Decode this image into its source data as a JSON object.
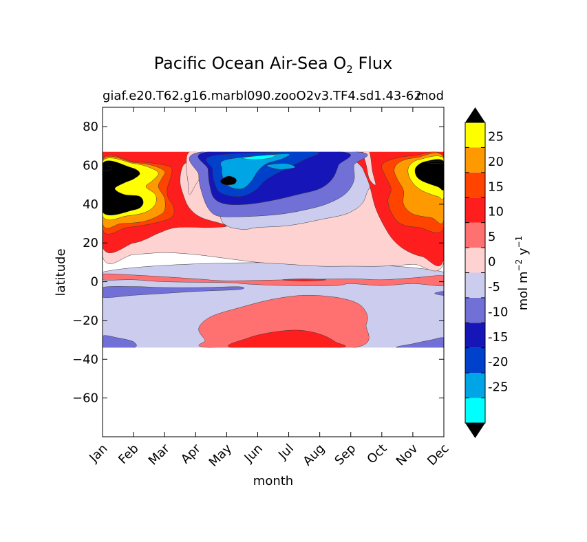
{
  "chart_data": {
    "type": "heatmap",
    "title": "Pacific Ocean Air-Sea O",
    "title_subscript": "2",
    "title_suffix": " Flux",
    "subtitle_left": "giaf.e20.T62.g16.marbl090.zooO2v3.TF4.sd1.43-62",
    "subtitle_right": "mod",
    "xlabel": "month",
    "ylabel": "latitude",
    "x_categories": [
      "Jan",
      "Feb",
      "Mar",
      "Apr",
      "May",
      "Jun",
      "Jul",
      "Aug",
      "Sep",
      "Oct",
      "Nov",
      "Dec"
    ],
    "xlim": [
      0,
      11
    ],
    "ylim": [
      -80,
      90
    ],
    "yticks": [
      -60,
      -40,
      -20,
      0,
      20,
      40,
      60,
      80
    ],
    "data_lat_range": [
      -34,
      67
    ],
    "colorbar": {
      "label": "mol m",
      "label_exp1": "−2",
      "label_mid": "  y",
      "label_exp2": "−1",
      "levels": [
        -30,
        -25,
        -20,
        -15,
        -10,
        -5,
        0,
        5,
        10,
        15,
        20,
        25,
        30
      ],
      "tick_labels": [
        "-25",
        "-20",
        "-15",
        "-10",
        "-5",
        "0",
        "5",
        "10",
        "15",
        "20",
        "25"
      ],
      "colors": [
        "#00ffff",
        "#00a5e6",
        "#0041cc",
        "#1616b8",
        "#7070d6",
        "#ccccee",
        "#ffd2d2",
        "#ff7070",
        "#ff1e1e",
        "#ff4400",
        "#ff9900",
        "#ffff00"
      ],
      "under_color": "#000000",
      "over_color": "#000000"
    },
    "regions": [
      {
        "level": -5,
        "points": [
          [
            0,
            5
          ],
          [
            11,
            5
          ],
          [
            11,
            -34
          ],
          [
            0,
            -34
          ]
        ]
      },
      {
        "level": 5,
        "points": [
          [
            0,
            4
          ],
          [
            1.5,
            3
          ],
          [
            3,
            1.5
          ],
          [
            4,
            0.5
          ],
          [
            6,
            1
          ],
          [
            8,
            1.5
          ],
          [
            9,
            1
          ],
          [
            10,
            2
          ],
          [
            11,
            3
          ],
          [
            11,
            -2
          ],
          [
            10,
            -1
          ],
          [
            9,
            -2
          ],
          [
            8,
            -1
          ],
          [
            7.5,
            -2
          ],
          [
            6,
            -2
          ],
          [
            5,
            -1.5
          ],
          [
            4.5,
            -1
          ],
          [
            4,
            -0.5
          ],
          [
            2,
            0
          ],
          [
            1,
            1
          ],
          [
            0,
            1
          ]
        ]
      },
      {
        "level": 5,
        "points": [
          [
            3.5,
            -34
          ],
          [
            3.3,
            -30
          ],
          [
            3.1,
            -24
          ],
          [
            3.5,
            -18
          ],
          [
            4.5,
            -13
          ],
          [
            5.5,
            -9
          ],
          [
            6.5,
            -7
          ],
          [
            7.5,
            -8
          ],
          [
            8.2,
            -11
          ],
          [
            8.5,
            -16
          ],
          [
            8.5,
            -22
          ],
          [
            8.1,
            -34
          ]
        ]
      },
      {
        "level": 10,
        "points": [
          [
            4.2,
            -34
          ],
          [
            4.7,
            -29
          ],
          [
            5.5,
            -26
          ],
          [
            6.3,
            -25
          ],
          [
            7,
            -27
          ],
          [
            7.5,
            -31
          ],
          [
            7.6,
            -34
          ]
        ]
      },
      {
        "level": 10,
        "points": [
          [
            5.8,
            1
          ],
          [
            6.5,
            1.5
          ],
          [
            7.2,
            1
          ],
          [
            6.5,
            0.3
          ]
        ]
      },
      {
        "level": -10,
        "points": [
          [
            0,
            -3
          ],
          [
            1,
            -2.5
          ],
          [
            2,
            -3
          ],
          [
            3.2,
            -3
          ],
          [
            4.4,
            -2.6
          ],
          [
            4.4,
            -4
          ],
          [
            3,
            -5
          ],
          [
            2,
            -6
          ],
          [
            1,
            -7
          ],
          [
            0,
            -8
          ]
        ]
      },
      {
        "level": -10,
        "points": [
          [
            0,
            -28
          ],
          [
            0.5,
            -29
          ],
          [
            1,
            -31
          ],
          [
            1,
            -34
          ],
          [
            0,
            -34
          ]
        ]
      },
      {
        "level": -10,
        "points": [
          [
            9.5,
            -34
          ],
          [
            10,
            -32
          ],
          [
            10.6,
            -30
          ],
          [
            11,
            -29
          ],
          [
            11,
            -34
          ]
        ]
      },
      {
        "level": -10,
        "points": [
          [
            10.7,
            -6
          ],
          [
            11,
            -5
          ],
          [
            11,
            -7
          ]
        ]
      },
      {
        "level": 0,
        "points": [
          [
            0,
            67
          ],
          [
            11,
            67
          ],
          [
            11,
            10
          ],
          [
            10,
            9
          ],
          [
            9,
            8
          ],
          [
            8,
            8
          ],
          [
            7,
            8
          ],
          [
            6,
            9
          ],
          [
            5,
            10
          ],
          [
            4,
            12
          ],
          [
            3,
            14
          ],
          [
            2,
            15
          ],
          [
            1,
            14
          ],
          [
            0,
            13
          ]
        ]
      },
      {
        "level": -5,
        "points": [
          [
            3.2,
            67
          ],
          [
            8.5,
            67
          ],
          [
            8.5,
            45
          ],
          [
            8,
            36
          ],
          [
            7,
            32
          ],
          [
            6,
            29
          ],
          [
            5,
            28
          ],
          [
            4.5,
            27
          ],
          [
            3.9,
            30
          ],
          [
            3.7,
            40
          ],
          [
            3.3,
            55
          ]
        ]
      },
      {
        "level": 10,
        "points": [
          [
            0,
            67
          ],
          [
            3,
            67
          ],
          [
            2.6,
            60
          ],
          [
            2.5,
            52
          ],
          [
            2.6,
            45
          ],
          [
            2.8,
            38
          ],
          [
            3.2,
            33
          ],
          [
            4,
            29
          ],
          [
            3.5,
            28
          ],
          [
            2.4,
            28
          ],
          [
            1.8,
            25
          ],
          [
            1.4,
            22
          ],
          [
            1,
            20
          ],
          [
            0,
            18
          ]
        ]
      },
      {
        "level": 10,
        "points": [
          [
            8.2,
            67
          ],
          [
            11,
            67
          ],
          [
            11,
            12
          ],
          [
            10.3,
            13
          ],
          [
            9.8,
            16
          ],
          [
            9.4,
            21
          ],
          [
            9.1,
            28
          ],
          [
            8.8,
            38
          ],
          [
            8.6,
            50
          ],
          [
            8.4,
            58
          ]
        ]
      },
      {
        "level": 0,
        "points": [
          [
            2.8,
            67
          ],
          [
            3.4,
            67
          ],
          [
            3.3,
            58
          ],
          [
            3,
            50
          ],
          [
            2.8,
            45
          ],
          [
            2.75,
            52
          ],
          [
            2.7,
            60
          ]
        ]
      },
      {
        "level": 0,
        "points": [
          [
            8.4,
            67
          ],
          [
            8.6,
            67
          ],
          [
            8.7,
            57
          ],
          [
            8.8,
            50
          ],
          [
            8.6,
            53
          ],
          [
            8.5,
            60
          ]
        ]
      },
      {
        "level": -10,
        "points": [
          [
            3.2,
            67
          ],
          [
            8.2,
            67
          ],
          [
            8.1,
            60
          ],
          [
            8.1,
            52
          ],
          [
            7.8,
            45
          ],
          [
            7.2,
            40
          ],
          [
            6.5,
            37
          ],
          [
            5.8,
            35
          ],
          [
            5.1,
            34
          ],
          [
            4.3,
            33.5
          ],
          [
            3.7,
            34
          ],
          [
            3.4,
            38
          ],
          [
            3.2,
            46
          ],
          [
            3.1,
            55
          ]
        ]
      },
      {
        "level": -15,
        "points": [
          [
            3.4,
            67
          ],
          [
            7.7,
            67
          ],
          [
            7.6,
            60
          ],
          [
            7.4,
            53
          ],
          [
            7,
            48
          ],
          [
            6.3,
            45
          ],
          [
            5.5,
            42
          ],
          [
            4.7,
            40
          ],
          [
            4,
            40
          ],
          [
            3.6,
            43
          ],
          [
            3.45,
            50
          ],
          [
            3.4,
            58
          ]
        ]
      },
      {
        "level": -20,
        "points": [
          [
            3.6,
            65
          ],
          [
            6.8,
            67
          ],
          [
            6.5,
            63
          ],
          [
            6,
            59
          ],
          [
            5.3,
            53
          ],
          [
            4.9,
            47
          ],
          [
            4.4,
            44
          ],
          [
            3.8,
            46
          ],
          [
            3.6,
            52
          ],
          [
            3.55,
            58
          ]
        ]
      },
      {
        "level": -25,
        "points": [
          [
            4,
            63
          ],
          [
            5.9,
            66
          ],
          [
            5.8,
            63.5
          ],
          [
            5.3,
            61
          ],
          [
            5,
            57
          ],
          [
            4.8,
            52
          ],
          [
            4.5,
            48
          ],
          [
            4.1,
            49
          ],
          [
            3.9,
            53
          ],
          [
            3.85,
            58
          ]
        ]
      },
      {
        "level": -30,
        "points": [
          [
            4.5,
            64
          ],
          [
            5.5,
            65.5
          ],
          [
            5.4,
            63.8
          ],
          [
            4.9,
            63
          ]
        ]
      },
      {
        "level": -25,
        "points": [
          [
            5.3,
            60
          ],
          [
            5.9,
            61
          ],
          [
            6.2,
            59
          ],
          [
            5.7,
            58
          ]
        ]
      },
      {
        "level": -35,
        "points": [
          [
            3.8,
            52
          ],
          [
            4.05,
            54.5
          ],
          [
            4.3,
            53
          ],
          [
            4.25,
            50.5
          ],
          [
            3.95,
            50
          ]
        ]
      },
      {
        "level": 15,
        "points": [
          [
            0,
            63
          ],
          [
            1,
            62
          ],
          [
            1.7,
            61
          ],
          [
            2.2,
            59
          ],
          [
            2.2,
            54
          ],
          [
            2.1,
            49
          ],
          [
            2.1,
            44
          ],
          [
            2.3,
            38
          ],
          [
            2.2,
            33
          ],
          [
            1.6,
            30
          ],
          [
            0.8,
            28
          ],
          [
            0,
            27
          ]
        ]
      },
      {
        "level": 20,
        "points": [
          [
            0,
            62.5
          ],
          [
            1,
            61.5
          ],
          [
            1.6,
            60
          ],
          [
            2,
            57
          ],
          [
            1.9,
            53
          ],
          [
            1.8,
            49
          ],
          [
            2,
            43
          ],
          [
            2,
            37
          ],
          [
            1.8,
            34
          ],
          [
            1.3,
            31
          ],
          [
            0.6,
            30
          ],
          [
            0,
            30
          ]
        ]
      },
      {
        "level": 25,
        "points": [
          [
            0,
            62
          ],
          [
            1,
            61
          ],
          [
            1.5,
            59
          ],
          [
            1.8,
            56
          ],
          [
            1.6,
            52
          ],
          [
            1.4,
            49
          ],
          [
            1.7,
            45
          ],
          [
            1.7,
            40
          ],
          [
            1.4,
            36
          ],
          [
            0.8,
            34
          ],
          [
            0,
            34
          ]
        ]
      },
      {
        "level": 30,
        "points": [
          [
            0,
            61
          ],
          [
            0.9,
            59
          ],
          [
            1.2,
            56
          ],
          [
            1,
            53
          ],
          [
            0.7,
            51
          ],
          [
            0.4,
            48
          ],
          [
            0.7,
            45
          ],
          [
            1.2,
            44
          ],
          [
            1.3,
            40
          ],
          [
            1,
            37
          ],
          [
            0,
            36
          ]
        ]
      },
      {
        "level": 35,
        "points": [
          [
            0,
            60
          ],
          [
            0.3,
            59
          ],
          [
            0.2,
            57.5
          ],
          [
            0,
            57.5
          ]
        ]
      },
      {
        "level": 15,
        "points": [
          [
            11,
            64
          ],
          [
            10,
            65
          ],
          [
            9.3,
            63
          ],
          [
            9,
            60
          ],
          [
            9.1,
            55
          ],
          [
            9.3,
            48
          ],
          [
            9.2,
            42
          ],
          [
            9.3,
            36
          ],
          [
            9.6,
            30
          ],
          [
            10.2,
            28
          ],
          [
            11,
            28
          ]
        ]
      },
      {
        "level": 20,
        "points": [
          [
            11,
            64
          ],
          [
            10.1,
            64
          ],
          [
            9.6,
            62
          ],
          [
            9.4,
            58
          ],
          [
            9.5,
            53
          ],
          [
            9.7,
            47
          ],
          [
            9.7,
            40
          ],
          [
            10,
            35
          ],
          [
            10.6,
            33
          ],
          [
            11,
            32
          ]
        ]
      },
      {
        "level": 25,
        "points": [
          [
            11,
            63.5
          ],
          [
            10.2,
            63
          ],
          [
            9.9,
            60
          ],
          [
            9.85,
            56
          ],
          [
            10,
            51
          ],
          [
            10.3,
            47
          ],
          [
            10.8,
            44
          ],
          [
            11,
            44
          ]
        ]
      },
      {
        "level": 30,
        "points": [
          [
            11,
            62
          ],
          [
            10.4,
            62
          ],
          [
            10.1,
            59
          ],
          [
            10.1,
            55
          ],
          [
            10.3,
            52
          ],
          [
            10.8,
            49
          ],
          [
            11,
            48
          ]
        ]
      },
      {
        "level": 35,
        "points": [
          [
            11,
            61
          ],
          [
            11,
            62.2
          ],
          [
            10.6,
            62.1
          ],
          [
            10.5,
            61.3
          ]
        ]
      }
    ]
  }
}
